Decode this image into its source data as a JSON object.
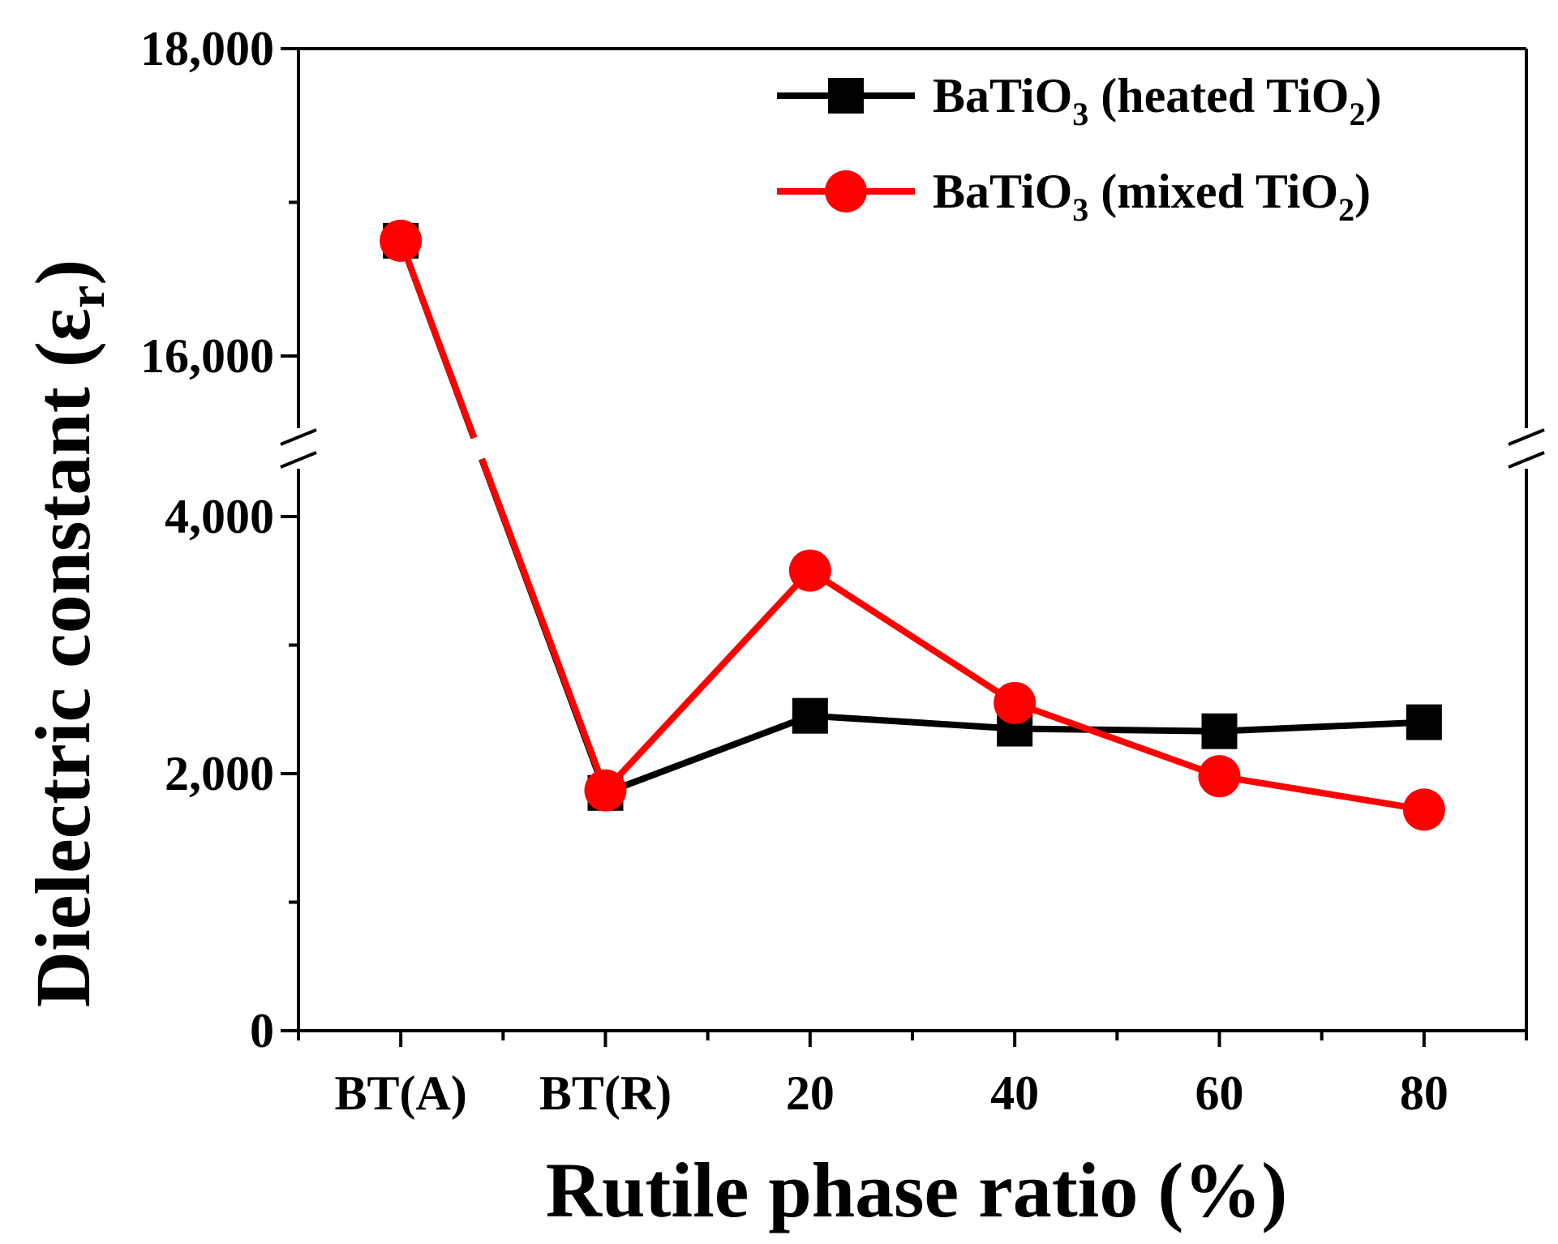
{
  "chart_data": {
    "type": "line",
    "xlabel": "Rutile phase ratio (%)",
    "ylabel_main": "Dielectric constant (ε",
    "ylabel_sub": "r",
    "ylabel_close": ")",
    "categories": [
      "BT(A)",
      "BT(R)",
      "20",
      "40",
      "60",
      "80"
    ],
    "y_axis": {
      "lower_range": [
        0,
        4700
      ],
      "upper_range": [
        15400,
        18000
      ],
      "break_between": [
        4700,
        15400
      ],
      "tick_labels": [
        {
          "value": 0,
          "label": "0"
        },
        {
          "value": 2000,
          "label": "2,000"
        },
        {
          "value": 4000,
          "label": "4,000"
        },
        {
          "value": 16000,
          "label": "16,000"
        },
        {
          "value": 18000,
          "label": "18,000"
        }
      ],
      "minor_ticks": [
        1000,
        3000,
        17000
      ]
    },
    "series": [
      {
        "name": "BaTiO",
        "name_sub": "3",
        "name_rest": " (heated TiO",
        "name_sub2": "2",
        "name_end": ")",
        "color": "#000000",
        "marker": "square",
        "values": [
          16750,
          1850,
          2450,
          2350,
          2330,
          2400
        ]
      },
      {
        "name": "BaTiO",
        "name_sub": "3",
        "name_rest": " (mixed TiO",
        "name_sub2": "2",
        "name_end": ")",
        "color": "#ff0000",
        "marker": "circle",
        "values": [
          16750,
          1870,
          3580,
          2550,
          1980,
          1720
        ]
      }
    ]
  }
}
